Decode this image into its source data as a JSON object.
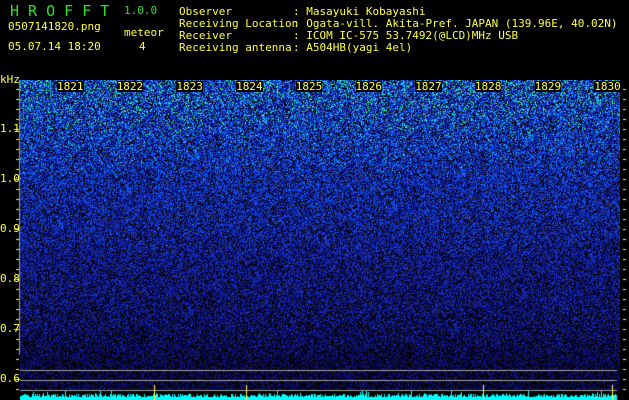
{
  "app": {
    "title": "H R O F F T",
    "version": "1.0.0"
  },
  "file": {
    "name": "0507141820.png",
    "datetime": "05.07.14 18:20"
  },
  "meteor": {
    "label": "meteor",
    "count": "4"
  },
  "info": [
    {
      "label": "Observer",
      "value": ": Masayuki Kobayashi"
    },
    {
      "label": "Receiving Location",
      "value": ": Ogata-vill. Akita-Pref. JAPAN (139.96E, 40.02N)"
    },
    {
      "label": "Receiver",
      "value": ": ICOM IC-575 53.7492(@LCD)MHz USB"
    },
    {
      "label": "Receiving antenna",
      "value": ": A504HB(yagi 4el)"
    }
  ],
  "axis": {
    "y_unit": "kHz",
    "y_ticks": [
      "1.1",
      "1.0",
      "0.9",
      "0.8",
      "0.7",
      "0.6"
    ],
    "time_labels": [
      "1821",
      "1822",
      "1823",
      "1824",
      "1825",
      "1826",
      "1827",
      "1828",
      "1829",
      "1830"
    ]
  },
  "colors": {
    "text": "#ffff40",
    "title": "#30e030",
    "level": "#00ffff",
    "grid": "#a0a0a0"
  }
}
